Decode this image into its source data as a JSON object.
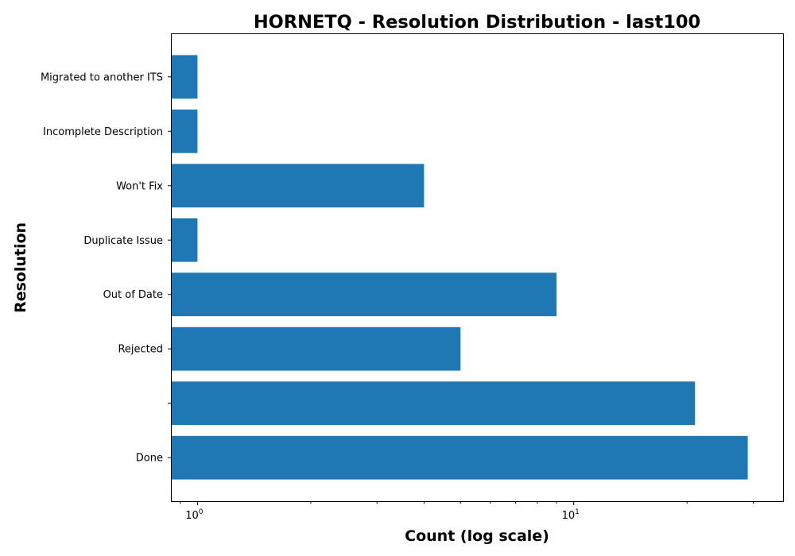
{
  "chart_data": {
    "type": "bar",
    "orientation": "horizontal",
    "title": "HORNETQ - Resolution Distribution - last100",
    "xlabel": "Count (log scale)",
    "ylabel": "Resolution",
    "xscale": "log",
    "xlim": [
      0.85,
      36
    ],
    "categories": [
      "Done",
      "",
      "Rejected",
      "Out of Date",
      "Duplicate Issue",
      "Won't Fix",
      "Incomplete Description",
      "Migrated to another ITS"
    ],
    "values": [
      29,
      21,
      5,
      9,
      1,
      4,
      1,
      1
    ],
    "x_ticks": [
      {
        "value": 1,
        "base": "10",
        "exp": "0"
      },
      {
        "value": 10,
        "base": "10",
        "exp": "1"
      }
    ],
    "bar_color": "#1f77b4",
    "grid": false,
    "legend": "none"
  }
}
